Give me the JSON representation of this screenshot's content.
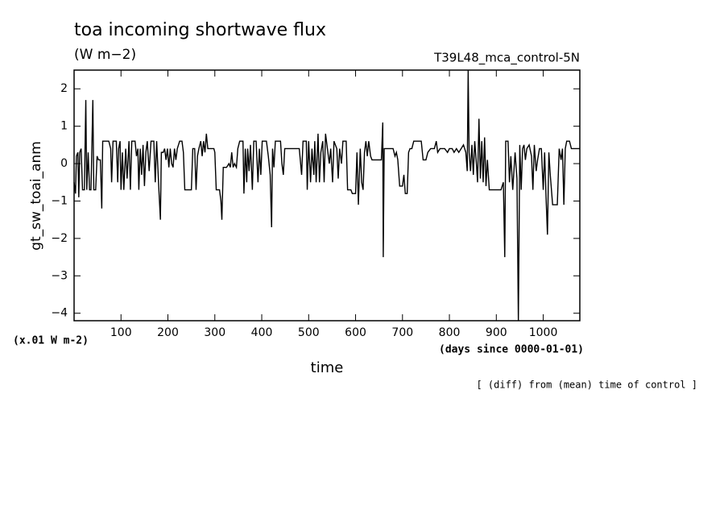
{
  "chart_data": {
    "type": "line",
    "title": "toa incoming shortwave flux",
    "subtitle": "(W m−2)",
    "experiment": "T39L48_mca_control-5N",
    "y_label": "gt_sw_toai_anm",
    "x_label": "time",
    "y_unit_note": "(x.01 W m-2)",
    "x_unit_note": "(days since 0000-01-01)",
    "footnote": "[ (diff) from (mean) time of control ]",
    "xlim": [
      0,
      1078
    ],
    "ylim": [
      -4.2,
      2.5
    ],
    "xticks": [
      100,
      200,
      300,
      400,
      500,
      600,
      700,
      800,
      900,
      1000
    ],
    "yticks": [
      {
        "value": -4,
        "label": "−4"
      },
      {
        "value": -3,
        "label": "−3"
      },
      {
        "value": -2,
        "label": "−2"
      },
      {
        "value": -1,
        "label": "−1"
      },
      0,
      1,
      2
    ],
    "color": "#000000",
    "x": [
      0,
      3,
      5,
      8,
      10,
      12,
      15,
      18,
      22,
      25,
      27,
      30,
      33,
      36,
      40,
      42,
      46,
      49,
      52,
      56,
      59,
      61,
      66,
      70,
      74,
      78,
      80,
      83,
      90,
      93,
      95,
      98,
      100,
      103,
      106,
      110,
      113,
      117,
      120,
      123,
      130,
      133,
      136,
      138,
      141,
      144,
      147,
      150,
      153,
      156,
      160,
      164,
      170,
      173,
      176,
      180,
      184,
      186,
      190,
      193,
      196,
      199,
      202,
      205,
      208,
      211,
      214,
      217,
      220,
      225,
      230,
      233,
      236,
      245,
      250,
      253,
      257,
      260,
      263,
      266,
      270,
      273,
      276,
      279,
      282,
      285,
      290,
      298,
      300,
      303,
      310,
      313,
      315,
      318,
      322,
      325,
      330,
      333,
      336,
      339,
      342,
      346,
      349,
      353,
      360,
      362,
      365,
      368,
      370,
      373,
      376,
      380,
      383,
      388,
      392,
      395,
      398,
      401,
      410,
      414,
      418,
      421,
      423,
      426,
      429,
      440,
      443,
      446,
      449,
      460,
      470,
      480,
      485,
      488,
      495,
      497,
      500,
      504,
      507,
      511,
      513,
      516,
      520,
      523,
      526,
      530,
      533,
      536,
      540,
      544,
      547,
      551,
      554,
      560,
      563,
      566,
      570,
      573,
      580,
      583,
      590,
      593,
      600,
      603,
      606,
      610,
      613,
      616,
      619,
      622,
      625,
      628,
      632,
      635,
      640,
      650,
      655,
      658,
      659,
      661,
      670,
      680,
      684,
      687,
      690,
      694,
      700,
      703,
      706,
      710,
      713,
      716,
      720,
      724,
      730,
      740,
      744,
      750,
      754,
      760,
      768,
      772,
      775,
      780,
      790,
      796,
      800,
      806,
      810,
      815,
      820,
      825,
      830,
      835,
      838,
      840,
      842,
      845,
      848,
      851,
      854,
      857,
      860,
      863,
      866,
      869,
      872,
      875,
      878,
      881,
      885,
      890,
      895,
      900,
      905,
      910,
      915,
      918,
      920,
      925,
      928,
      931,
      935,
      940,
      944,
      947,
      950,
      953,
      956,
      959,
      962,
      965,
      970,
      975,
      978,
      981,
      985,
      988,
      992,
      996,
      1000,
      1003,
      1006,
      1009,
      1012,
      1015,
      1020,
      1030,
      1034,
      1038,
      1041,
      1044,
      1047,
      1050,
      1056,
      1060,
      1070,
      1078
    ],
    "values": [
      -0.5,
      -0.8,
      0.2,
      0.3,
      -0.9,
      0.3,
      0.4,
      -0.7,
      -0.7,
      1.7,
      -0.7,
      0.3,
      -0.7,
      -0.7,
      1.7,
      -0.7,
      -0.7,
      0.2,
      0.1,
      0.1,
      -1.2,
      0.6,
      0.6,
      0.6,
      0.6,
      0.4,
      -0.5,
      0.6,
      0.6,
      -0.5,
      0.4,
      0.6,
      -0.7,
      0.3,
      -0.7,
      0.4,
      -0.4,
      0.6,
      -0.7,
      0.6,
      0.6,
      0.2,
      0.4,
      -0.7,
      0.4,
      -0.3,
      0.5,
      -0.6,
      0.3,
      0.6,
      -0.2,
      0.6,
      0.6,
      -0.5,
      0.6,
      -0.5,
      -1.5,
      0.3,
      0.3,
      0.4,
      0.1,
      0.4,
      -0.1,
      0.4,
      0.0,
      -0.1,
      0.4,
      0.1,
      0.4,
      0.6,
      0.6,
      0.3,
      -0.7,
      -0.7,
      -0.7,
      0.4,
      0.4,
      -0.7,
      0.2,
      0.4,
      0.6,
      0.2,
      0.6,
      0.3,
      0.8,
      0.4,
      0.4,
      0.4,
      0.3,
      -0.7,
      -0.7,
      -1.0,
      -1.5,
      -0.1,
      -0.1,
      -0.1,
      0.0,
      -0.1,
      0.3,
      -0.1,
      0.0,
      -0.1,
      0.4,
      0.6,
      0.6,
      -0.8,
      0.4,
      -0.5,
      0.4,
      -0.2,
      0.5,
      -0.7,
      0.6,
      0.6,
      -0.5,
      0.4,
      -0.3,
      0.6,
      0.6,
      0.2,
      -0.3,
      -1.7,
      0.4,
      -0.1,
      0.6,
      0.6,
      0.0,
      -0.3,
      0.4,
      0.4,
      0.4,
      0.4,
      -0.3,
      0.6,
      0.6,
      -0.7,
      0.6,
      -0.5,
      0.4,
      -0.3,
      0.6,
      -0.5,
      0.8,
      -0.5,
      0.3,
      0.6,
      -0.5,
      0.8,
      0.4,
      0.0,
      0.4,
      -0.5,
      0.6,
      0.4,
      -0.4,
      0.4,
      0.0,
      0.6,
      0.6,
      -0.7,
      -0.7,
      -0.8,
      -0.8,
      0.3,
      -1.1,
      0.4,
      -0.5,
      -0.7,
      0.3,
      0.6,
      0.2,
      0.6,
      0.2,
      0.1,
      0.1,
      0.1,
      0.1,
      1.1,
      -2.5,
      0.4,
      0.4,
      0.4,
      0.2,
      0.3,
      0.1,
      -0.6,
      -0.6,
      -0.3,
      -0.8,
      -0.8,
      0.3,
      0.4,
      0.4,
      0.6,
      0.6,
      0.6,
      0.1,
      0.1,
      0.3,
      0.4,
      0.4,
      0.6,
      0.3,
      0.4,
      0.4,
      0.3,
      0.4,
      0.4,
      0.3,
      0.4,
      0.3,
      0.4,
      0.5,
      0.3,
      -0.2,
      2.5,
      0.3,
      -0.2,
      0.5,
      -0.3,
      0.6,
      0.1,
      -0.5,
      1.2,
      -0.4,
      0.6,
      -0.5,
      0.7,
      -0.6,
      0.1,
      -0.7,
      -0.7,
      -0.7,
      -0.7,
      -0.7,
      -0.7,
      -0.5,
      -2.5,
      0.6,
      0.6,
      -0.5,
      0.2,
      -0.7,
      0.3,
      -0.4,
      -4.2,
      0.5,
      -0.7,
      0.4,
      0.5,
      0.1,
      0.4,
      0.5,
      0.2,
      -0.7,
      0.5,
      -0.2,
      0.1,
      0.4,
      0.4,
      -0.7,
      0.3,
      -0.9,
      -1.9,
      0.3,
      -0.3,
      -1.1,
      -1.1,
      0.4,
      0.1,
      0.4,
      -1.1,
      0.4,
      0.6,
      0.6,
      0.4,
      0.4,
      0.4
    ]
  }
}
